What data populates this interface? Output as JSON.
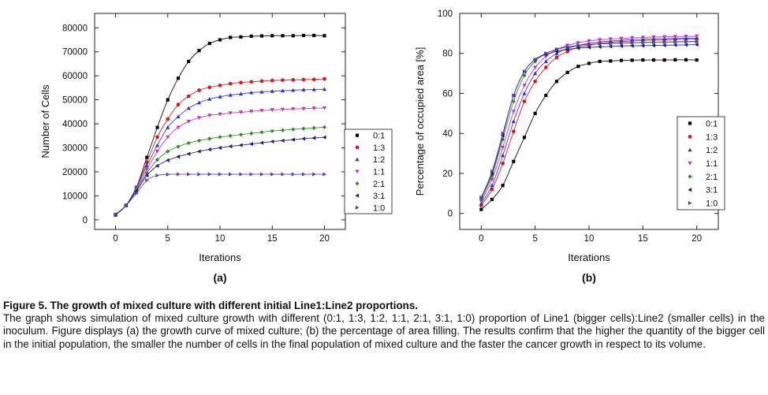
{
  "chart_data": [
    {
      "type": "scatter",
      "panel_label": "(a)",
      "xlabel": "Iterations",
      "ylabel": "Number of Cells",
      "xlim": [
        -2,
        22
      ],
      "ylim": [
        -4000,
        86000
      ],
      "xticks": [
        0,
        5,
        10,
        15,
        20
      ],
      "yticks": [
        0,
        10000,
        20000,
        30000,
        40000,
        50000,
        60000,
        70000,
        80000
      ],
      "ytick_labels": [
        "0",
        "10000",
        "20000",
        "30000",
        "40000",
        "50000",
        "60000",
        "70000",
        "80000"
      ],
      "grid": false,
      "legend_position": "right",
      "x": [
        0,
        1,
        2,
        3,
        4,
        5,
        6,
        7,
        8,
        9,
        10,
        11,
        12,
        13,
        14,
        15,
        16,
        17,
        18,
        19,
        20
      ],
      "series": [
        {
          "name": "0:1",
          "marker": "square",
          "color": "#000000",
          "values": [
            2000,
            6000,
            13500,
            26000,
            38500,
            50000,
            59000,
            66000,
            70500,
            73500,
            75000,
            76000,
            76200,
            76500,
            76600,
            76700,
            76700,
            76700,
            76800,
            76800,
            76700
          ]
        },
        {
          "name": "1:3",
          "marker": "circle",
          "color": "#e0131b",
          "values": [
            2200,
            6000,
            13500,
            24000,
            34500,
            42000,
            48000,
            51500,
            54000,
            55200,
            56000,
            56700,
            57200,
            57500,
            57800,
            58000,
            58200,
            58300,
            58400,
            58500,
            58700
          ]
        },
        {
          "name": "1:2",
          "marker": "triangle-up",
          "color": "#2b2fd8",
          "values": [
            2200,
            6000,
            13500,
            22500,
            31000,
            38500,
            43000,
            46500,
            48800,
            50300,
            51300,
            52000,
            52500,
            53000,
            53300,
            53600,
            53800,
            54000,
            54200,
            54300,
            54400
          ]
        },
        {
          "name": "1:1",
          "marker": "triangle-down",
          "color": "#c030b8",
          "values": [
            2200,
            6000,
            13000,
            21000,
            28500,
            34500,
            38500,
            41000,
            42500,
            43500,
            44000,
            44500,
            44800,
            45200,
            45500,
            45800,
            46000,
            46200,
            46300,
            46500,
            46600
          ]
        },
        {
          "name": "2:1",
          "marker": "diamond",
          "color": "#2e8b24",
          "values": [
            2200,
            6000,
            12500,
            19500,
            25000,
            28500,
            30500,
            32000,
            33000,
            33800,
            34500,
            35000,
            35500,
            36000,
            36500,
            37000,
            37300,
            37700,
            38000,
            38300,
            38600
          ]
        },
        {
          "name": "3:1",
          "marker": "triangle-left",
          "color": "#1a1a7a",
          "values": [
            2200,
            6000,
            12000,
            18500,
            22500,
            24800,
            26300,
            27500,
            28500,
            29300,
            30000,
            30600,
            31100,
            31600,
            32100,
            32600,
            33000,
            33400,
            33800,
            34100,
            34400
          ]
        },
        {
          "name": "1:0",
          "marker": "triangle-right",
          "color": "#5b3fb0",
          "values": [
            2200,
            6000,
            11000,
            16500,
            18500,
            18900,
            19000,
            19000,
            19000,
            19000,
            19000,
            19000,
            19000,
            19000,
            19000,
            19000,
            19000,
            19000,
            19000,
            19000,
            19000
          ]
        }
      ]
    },
    {
      "type": "scatter",
      "panel_label": "(b)",
      "xlabel": "Iterations",
      "ylabel": "Percentage of occupied area [%]",
      "xlim": [
        -2,
        22
      ],
      "ylim": [
        -8,
        100
      ],
      "xticks": [
        0,
        5,
        10,
        15,
        20
      ],
      "yticks": [
        0,
        20,
        40,
        60,
        80,
        100
      ],
      "ytick_labels": [
        "0",
        "20",
        "40",
        "60",
        "80",
        "100"
      ],
      "grid": false,
      "legend_position": "right",
      "x": [
        0,
        1,
        2,
        3,
        4,
        5,
        6,
        7,
        8,
        9,
        10,
        11,
        12,
        13,
        14,
        15,
        16,
        17,
        18,
        19,
        20
      ],
      "series": [
        {
          "name": "0:1",
          "marker": "square",
          "color": "#000000",
          "values": [
            2,
            7,
            14,
            26,
            38,
            50,
            59,
            66,
            70.5,
            73.5,
            75,
            76,
            76.2,
            76.5,
            76.6,
            76.7,
            76.7,
            76.7,
            76.8,
            76.8,
            76.7
          ]
        },
        {
          "name": "1:3",
          "marker": "circle",
          "color": "#e0131b",
          "values": [
            4,
            12,
            25,
            41,
            56,
            66,
            73,
            78,
            81,
            83,
            84,
            85,
            85.5,
            86,
            86.2,
            86.5,
            86.7,
            86.8,
            87,
            87.1,
            87.2
          ]
        },
        {
          "name": "1:2",
          "marker": "triangle-up",
          "color": "#2b2fd8",
          "values": [
            5,
            14,
            29,
            46,
            60,
            70,
            76,
            80,
            82.5,
            84,
            85,
            85.7,
            86.2,
            86.6,
            86.9,
            87.1,
            87.3,
            87.4,
            87.5,
            87.6,
            87.7
          ]
        },
        {
          "name": "1:1",
          "marker": "triangle-down",
          "color": "#c030b8",
          "values": [
            6,
            17,
            33,
            51,
            64,
            73,
            78.5,
            82,
            84,
            85.3,
            86.2,
            86.8,
            87.2,
            87.5,
            87.8,
            88,
            88.2,
            88.3,
            88.4,
            88.5,
            88.6
          ]
        },
        {
          "name": "2:1",
          "marker": "diamond",
          "color": "#2e8b24",
          "values": [
            7,
            19,
            37,
            56,
            69,
            76,
            80,
            82,
            83.3,
            84,
            84.5,
            84.8,
            85,
            85.2,
            85.4,
            85.5,
            85.6,
            85.7,
            85.8,
            85.9,
            86
          ]
        },
        {
          "name": "3:1",
          "marker": "triangle-left",
          "color": "#1a1a7a",
          "values": [
            8,
            20,
            39,
            59,
            71,
            77,
            79.5,
            81,
            82,
            82.6,
            83,
            83.3,
            83.5,
            83.7,
            83.8,
            83.9,
            84,
            84.1,
            84.2,
            84.3,
            84.4
          ]
        },
        {
          "name": "1:0",
          "marker": "triangle-right",
          "color": "#5b3fb0",
          "values": [
            8,
            21,
            40,
            59,
            71,
            77,
            80,
            82,
            83.2,
            84,
            84.5,
            84.8,
            85,
            85.2,
            85.3,
            85.4,
            85.5,
            85.6,
            85.7,
            85.8,
            85.8
          ]
        }
      ]
    }
  ],
  "caption": {
    "title": "Figure 5. The growth of mixed culture with different initial Line1:Line2 proportions.",
    "body": "The graph shows simulation of mixed culture growth with different (0:1, 1:3, 1:2, 1:1, 2:1, 3:1, 1:0) proportion of Line1 (bigger cells):Line2 (smaller cells) in the inoculum. Figure displays (a) the growth curve of mixed culture; (b) the percentage of area filling. The results confirm that the higher the quantity of the bigger cell in the initial population, the smaller the number of cells in the final population of mixed culture and the faster the cancer growth in respect to its volume."
  }
}
